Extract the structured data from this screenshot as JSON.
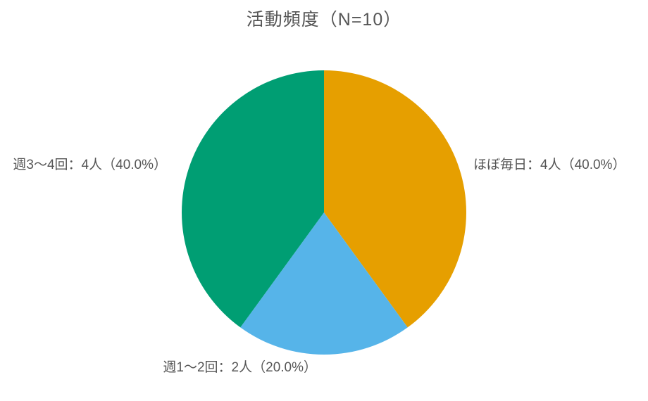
{
  "title": {
    "text": "活動頻度（N=10）"
  },
  "chart_data": {
    "type": "pie",
    "title": "活動頻度（N=10）",
    "n_total": 10,
    "start_angle": "top",
    "direction": "clockwise",
    "legend": "none",
    "labels_outside": true,
    "text_color": "#555555",
    "background_color": "#ffffff",
    "slices": [
      {
        "label": "ほぼ毎日",
        "count": 4,
        "percent": 40.0,
        "color": "#E69F00",
        "display": "ほぼ毎日：4人（40.0%）",
        "label_side": "right"
      },
      {
        "label": "週1〜2回",
        "count": 2,
        "percent": 20.0,
        "color": "#56B4E9",
        "display": "週1〜2回：2人（20.0%）",
        "label_side": "bottom"
      },
      {
        "label": "週3〜4回",
        "count": 4,
        "percent": 40.0,
        "color": "#009E73",
        "display": "週3〜4回：4人（40.0%）",
        "label_side": "left"
      }
    ]
  }
}
